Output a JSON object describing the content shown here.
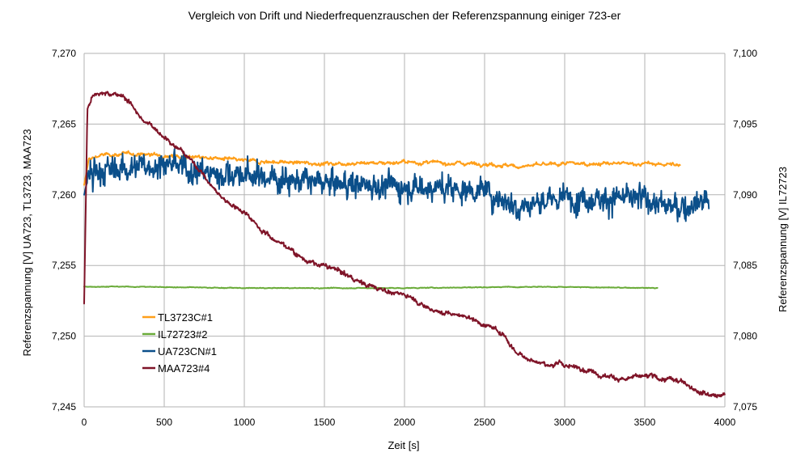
{
  "chart_data": {
    "type": "line",
    "title": "Vergleich von Drift und Niederfrequenzrauschen der Referenzspannung einiger 723-er",
    "xlabel": "Zeit [s]",
    "ylabel_left": "Referenzspannung [V] UA723, TL3723, MAA723",
    "ylabel_right": "Referenzspannung [V] IL72723",
    "xlim": [
      0,
      4000
    ],
    "ylim_left": [
      7.245,
      7.27
    ],
    "ylim_right": [
      7.075,
      7.1
    ],
    "x_ticks": [
      "0",
      "500",
      "1000",
      "1500",
      "2000",
      "2500",
      "3000",
      "3500",
      "4000"
    ],
    "y_left_ticks": [
      "7,245",
      "7,250",
      "7,255",
      "7,260",
      "7,265",
      "7,270"
    ],
    "y_right_ticks": [
      "7,075",
      "7,080",
      "7,085",
      "7,090",
      "7,095",
      "7,100"
    ],
    "grid": true,
    "legend_position": "lower-left",
    "series": [
      {
        "name": "TL3723C#1",
        "color": "#ff9f1a",
        "axis": "left",
        "noise": 0.0002,
        "points": [
          [
            0,
            7.2607
          ],
          [
            30,
            7.2625
          ],
          [
            100,
            7.2628
          ],
          [
            300,
            7.2629
          ],
          [
            500,
            7.2628
          ],
          [
            800,
            7.2626
          ],
          [
            1000,
            7.2624
          ],
          [
            1500,
            7.2622
          ],
          [
            2000,
            7.2623
          ],
          [
            2500,
            7.2622
          ],
          [
            2700,
            7.262
          ],
          [
            3000,
            7.2622
          ],
          [
            3500,
            7.2622
          ],
          [
            3720,
            7.2621
          ]
        ]
      },
      {
        "name": "IL72723#2",
        "color": "#6aab39",
        "axis": "right",
        "noise": 4e-05,
        "points": [
          [
            0,
            7.0835
          ],
          [
            300,
            7.0835
          ],
          [
            1000,
            7.0834
          ],
          [
            2000,
            7.0834
          ],
          [
            2800,
            7.0835
          ],
          [
            3580,
            7.0834
          ]
        ]
      },
      {
        "name": "UA723CN#1",
        "color": "#0b4f8a",
        "axis": "left",
        "noise": 0.0011,
        "points": [
          [
            0,
            7.26
          ],
          [
            30,
            7.2615
          ],
          [
            200,
            7.2618
          ],
          [
            500,
            7.2622
          ],
          [
            800,
            7.2615
          ],
          [
            1000,
            7.2614
          ],
          [
            1500,
            7.2608
          ],
          [
            2000,
            7.2606
          ],
          [
            2500,
            7.2603
          ],
          [
            2700,
            7.2592
          ],
          [
            3000,
            7.2598
          ],
          [
            3500,
            7.2597
          ],
          [
            3700,
            7.259
          ],
          [
            3900,
            7.2598
          ]
        ]
      },
      {
        "name": "MAA723#4",
        "color": "#7f1428",
        "axis": "left",
        "noise": 0.00022,
        "points": [
          [
            0,
            7.2523
          ],
          [
            20,
            7.266
          ],
          [
            50,
            7.267
          ],
          [
            80,
            7.2672
          ],
          [
            150,
            7.2672
          ],
          [
            250,
            7.267
          ],
          [
            400,
            7.265
          ],
          [
            600,
            7.2635
          ],
          [
            750,
            7.2615
          ],
          [
            850,
            7.26
          ],
          [
            1000,
            7.259
          ],
          [
            1200,
            7.257
          ],
          [
            1400,
            7.2555
          ],
          [
            1600,
            7.2545
          ],
          [
            1800,
            7.2535
          ],
          [
            2000,
            7.253
          ],
          [
            2200,
            7.252
          ],
          [
            2400,
            7.2515
          ],
          [
            2600,
            7.2505
          ],
          [
            2700,
            7.249
          ],
          [
            2900,
            7.2482
          ],
          [
            3100,
            7.2478
          ],
          [
            3400,
            7.2472
          ],
          [
            3600,
            7.2468
          ],
          [
            3800,
            7.2464
          ],
          [
            4000,
            7.246
          ]
        ]
      }
    ]
  }
}
